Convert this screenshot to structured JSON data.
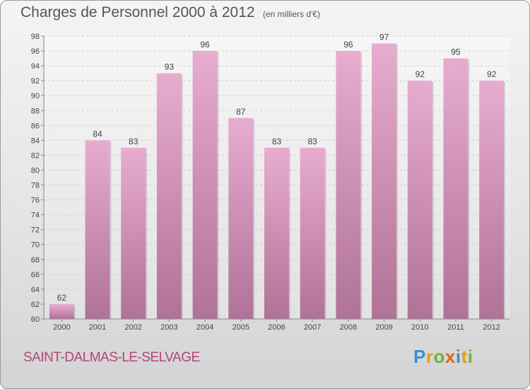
{
  "header": {
    "title": "Charges de Personnel 2000 à 2012",
    "unit": "(en milliers d'€)"
  },
  "footer": {
    "commune": "SAINT-DALMAS-LE-SELVAGE",
    "logo": "Proxiti"
  },
  "colors": {
    "bar_top": "#e8acd0",
    "bar_bottom": "#b07296",
    "commune_text": "#b0457a"
  },
  "chart_data": {
    "type": "bar",
    "title": "Charges de Personnel 2000 à 2012",
    "subtitle": "(en milliers d'€)",
    "categories": [
      "2000",
      "2001",
      "2002",
      "2003",
      "2004",
      "2005",
      "2006",
      "2007",
      "2008",
      "2009",
      "2010",
      "2011",
      "2012"
    ],
    "values": [
      62,
      84,
      83,
      93,
      96,
      87,
      83,
      83,
      96,
      97,
      92,
      95,
      92
    ],
    "ylim": [
      60,
      98
    ],
    "yticks": [
      60,
      62,
      64,
      66,
      68,
      70,
      72,
      74,
      76,
      78,
      80,
      82,
      84,
      86,
      88,
      90,
      92,
      94,
      96,
      98
    ],
    "grid": true,
    "data_labels": true
  }
}
